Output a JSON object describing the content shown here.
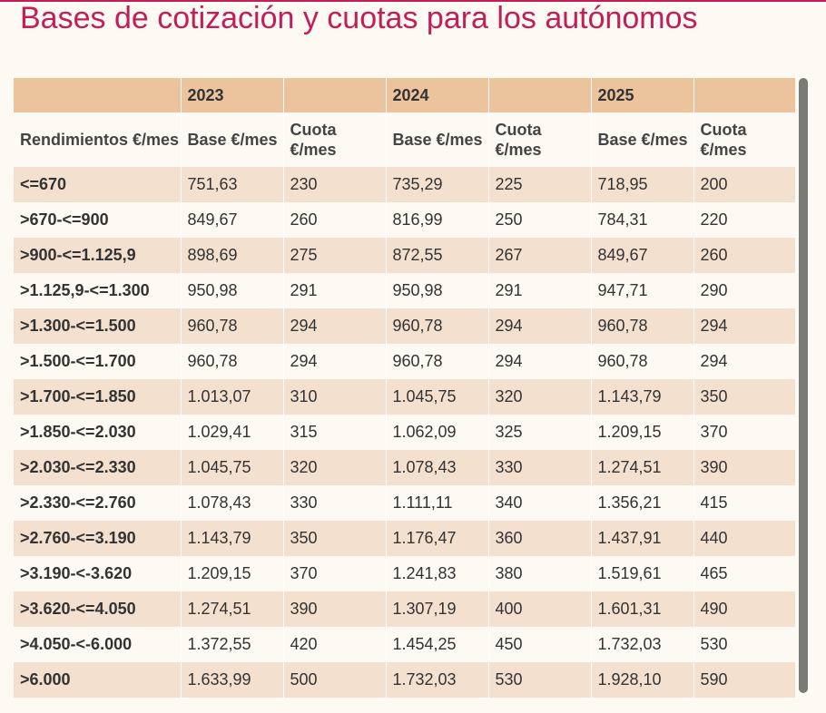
{
  "title": "Bases de cotización y cuotas para los autónomos",
  "colors": {
    "title": "#c41e5a",
    "header_band": "#ebc49e",
    "row_shaded": "#f3e0cf",
    "row_plain": "#fdf9f3",
    "scrollbar": "#7b7b76"
  },
  "table": {
    "years": [
      "",
      "2023",
      "",
      "2024",
      "",
      "2025",
      ""
    ],
    "columns": [
      "Rendimientos €/mes",
      "Base €/mes",
      "Cuota €/mes",
      "Base €/mes",
      "Cuota €/mes",
      "Base €/mes",
      "Cuota €/mes"
    ],
    "rows": [
      [
        "<=670",
        "751,63",
        "230",
        "735,29",
        "225",
        "718,95",
        "200"
      ],
      [
        ">670-<=900",
        "849,67",
        "260",
        "816,99",
        "250",
        "784,31",
        "220"
      ],
      [
        ">900-<=1.125,9",
        "898,69",
        "275",
        "872,55",
        "267",
        "849,67",
        "260"
      ],
      [
        ">1.125,9-<=1.300",
        "950,98",
        "291",
        "950,98",
        "291",
        "947,71",
        "290"
      ],
      [
        ">1.300-<=1.500",
        "960,78",
        "294",
        "960,78",
        "294",
        "960,78",
        "294"
      ],
      [
        ">1.500-<=1.700",
        "960,78",
        "294",
        "960,78",
        "294",
        "960,78",
        "294"
      ],
      [
        ">1.700-<=1.850",
        "1.013,07",
        "310",
        "1.045,75",
        "320",
        "1.143,79",
        "350"
      ],
      [
        ">1.850-<=2.030",
        "1.029,41",
        "315",
        "1.062,09",
        "325",
        "1.209,15",
        "370"
      ],
      [
        ">2.030-<=2.330",
        "1.045,75",
        "320",
        "1.078,43",
        "330",
        "1.274,51",
        "390"
      ],
      [
        ">2.330-<=2.760",
        "1.078,43",
        "330",
        "1.111,11",
        "340",
        "1.356,21",
        "415"
      ],
      [
        ">2.760-<=3.190",
        "1.143,79",
        "350",
        "1.176,47",
        "360",
        "1.437,91",
        "440"
      ],
      [
        ">3.190-<-3.620",
        "1.209,15",
        "370",
        "1.241,83",
        "380",
        "1.519,61",
        "465"
      ],
      [
        ">3.620-<=4.050",
        "1.274,51",
        "390",
        "1.307,19",
        "400",
        "1.601,31",
        "490"
      ],
      [
        ">4.050-<-6.000",
        "1.372,55",
        "420",
        "1.454,25",
        "450",
        "1.732,03",
        "530"
      ],
      [
        ">6.000",
        "1.633,99",
        "500",
        "1.732,03",
        "530",
        "1.928,10",
        "590"
      ]
    ]
  }
}
